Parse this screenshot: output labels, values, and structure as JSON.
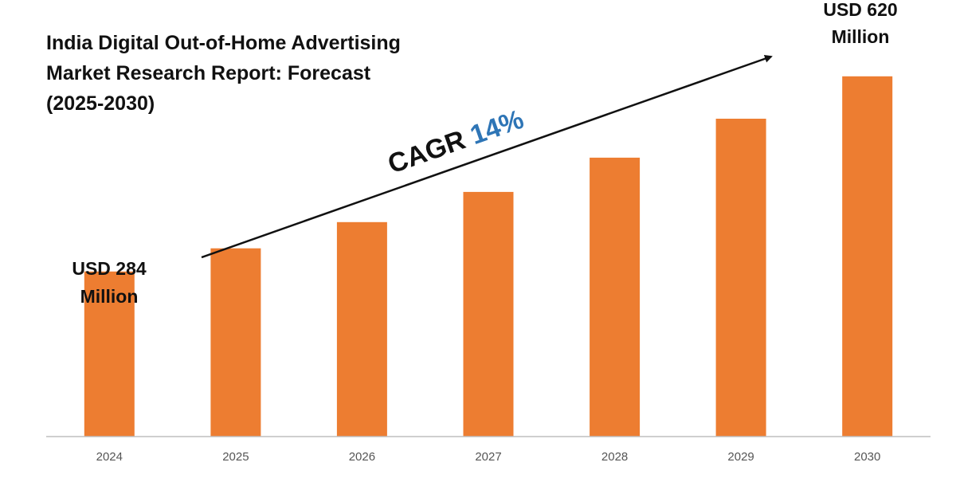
{
  "colors": {
    "bar": "#ed7d31",
    "cagr_value": "#2e75b6",
    "axis": "#bfbfbf",
    "text": "#111111",
    "tick": "#555555"
  },
  "title_lines": [
    "India Digital Out-of-Home Advertising",
    "Market Research Report: Forecast",
    "(2025-2030)"
  ],
  "cagr": {
    "label": "CAGR",
    "value": "14%"
  },
  "callouts": {
    "start": [
      "USD 284",
      "Million"
    ],
    "end": [
      "USD 620",
      "Million"
    ]
  },
  "chart_data": {
    "type": "bar",
    "categories": [
      "2024",
      "2025",
      "2026",
      "2027",
      "2028",
      "2029",
      "2030"
    ],
    "values": [
      284,
      324,
      369,
      421,
      480,
      547,
      620
    ],
    "ylim": [
      0,
      680
    ],
    "grid": false,
    "legend": "none"
  }
}
